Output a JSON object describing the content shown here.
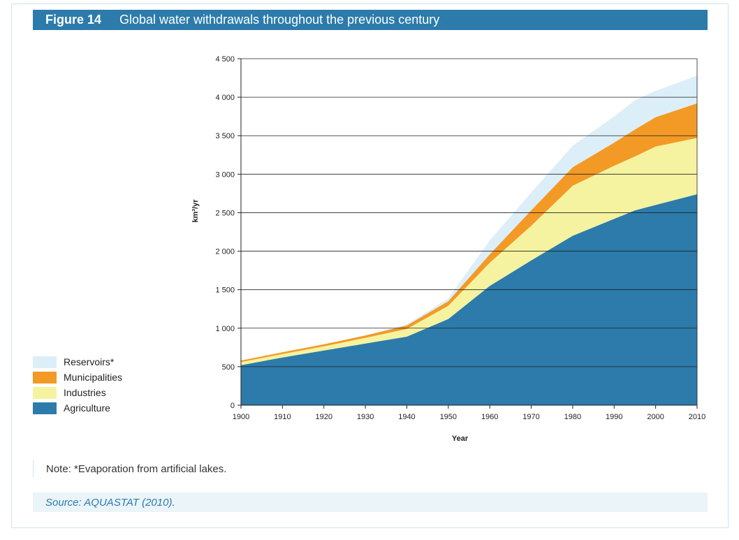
{
  "header": {
    "figure_label": "Figure 14",
    "title": "Global water withdrawals throughout the previous century"
  },
  "note": "Note: *Evaporation from artificial lakes.",
  "source": "Source: AQUASTAT (2010).",
  "legend": {
    "items": [
      {
        "label": "Reservoirs*",
        "color": "#dceef8"
      },
      {
        "label": "Municipalities",
        "color": "#f39a26"
      },
      {
        "label": "Industries",
        "color": "#f5f3a0"
      },
      {
        "label": "Agriculture",
        "color": "#2c7bab"
      }
    ]
  },
  "chart_data": {
    "type": "area",
    "stacked": true,
    "x": [
      1900,
      1910,
      1920,
      1930,
      1940,
      1950,
      1960,
      1970,
      1980,
      1990,
      1995,
      2000,
      2010
    ],
    "x_ticks": [
      1900,
      1910,
      1920,
      1930,
      1940,
      1950,
      1960,
      1970,
      1980,
      1990,
      2000,
      2010
    ],
    "x_tick_labels": [
      "1900",
      "1910",
      "1920",
      "1930",
      "1940",
      "1950",
      "1960",
      "1970",
      "1980",
      "1990",
      "2000",
      "2010"
    ],
    "y_ticks": [
      0,
      500,
      1000,
      1500,
      2000,
      2500,
      3000,
      3500,
      4000,
      4500
    ],
    "y_tick_labels": [
      "0",
      "500",
      "1 000",
      "1 500",
      "2 000",
      "2 500",
      "3 000",
      "3 500",
      "4 000",
      "4 500"
    ],
    "ylim": [
      0,
      4500
    ],
    "xlim": [
      1900,
      2010
    ],
    "xlabel": "Year",
    "ylabel": "km³/yr",
    "grid": "horizontal",
    "series": [
      {
        "name": "Agriculture",
        "color": "#2c7bab",
        "values": [
          520,
          620,
          710,
          800,
          890,
          1120,
          1550,
          1880,
          2200,
          2420,
          2530,
          2600,
          2740
        ]
      },
      {
        "name": "Industries",
        "color": "#f5f3a0",
        "values": [
          40,
          45,
          55,
          75,
          100,
          170,
          300,
          450,
          650,
          690,
          700,
          760,
          730
        ]
      },
      {
        "name": "Municipalities",
        "color": "#f39a26",
        "values": [
          20,
          22,
          25,
          30,
          45,
          60,
          110,
          200,
          240,
          300,
          350,
          380,
          450
        ]
      },
      {
        "name": "Reservoirs*",
        "color": "#dceef8",
        "values": [
          0,
          0,
          0,
          5,
          15,
          35,
          180,
          230,
          280,
          340,
          380,
          340,
          360
        ]
      }
    ]
  }
}
